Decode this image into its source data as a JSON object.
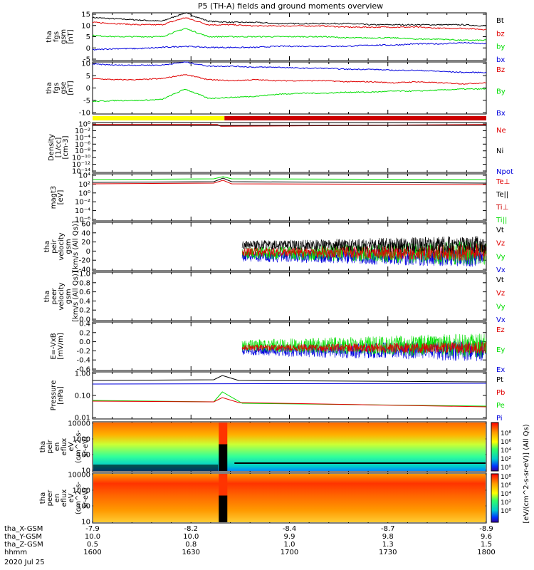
{
  "title": "P5 (TH-A) fields and ground moments overview",
  "colors": {
    "black": "#000000",
    "red": "#e00000",
    "green": "#00dd00",
    "blue": "#0000dd",
    "yellow": "#ffff00",
    "darkred": "#cc0000"
  },
  "panels": [
    {
      "id": "fgs-gsm",
      "ylabel": [
        "tha",
        "fgs",
        "gsm",
        "[nT]"
      ],
      "yticks": [
        "15",
        "10",
        "5",
        "0",
        "-5"
      ],
      "ylim": [
        -5,
        15
      ],
      "legend": [
        {
          "text": "Bt",
          "color": "black"
        },
        {
          "text": "bz",
          "color": "red"
        },
        {
          "text": "by",
          "color": "green"
        },
        {
          "text": "bx",
          "color": "blue"
        }
      ]
    },
    {
      "id": "fgs-gse",
      "ylabel": [
        "tha",
        "fgs",
        "gse",
        "[nT]"
      ],
      "yticks": [
        "10",
        "5",
        "0",
        "-5",
        "-10"
      ],
      "ylim": [
        -15,
        10
      ],
      "legend": [
        {
          "text": "Bz",
          "color": "red"
        },
        {
          "text": "By",
          "color": "green"
        },
        {
          "text": "Bx",
          "color": "blue"
        }
      ]
    },
    {
      "id": "density",
      "ylabel": [
        "Density",
        "[1/cc]",
        "[cm-3]"
      ],
      "yticks": [
        "10⁰",
        "10⁻²",
        "10⁻⁴",
        "10⁻⁶",
        "10⁻⁸",
        "10⁻¹⁰",
        "10⁻¹²",
        "10⁻¹⁴"
      ],
      "legend": [
        {
          "text": "Ne",
          "color": "red"
        },
        {
          "text": "Ni",
          "color": "black"
        },
        {
          "text": "Npot",
          "color": "blue"
        }
      ]
    },
    {
      "id": "temperature",
      "ylabel": [
        "magt3",
        "[eV]"
      ],
      "yticks": [
        "10⁴",
        "10²",
        "10⁰",
        "10⁻²",
        "10⁻⁴",
        "10⁻⁶"
      ],
      "legend": [
        {
          "text": "Te⊥",
          "color": "red"
        },
        {
          "text": "Te||",
          "color": "black"
        },
        {
          "text": "Ti⊥",
          "color": "darkred"
        },
        {
          "text": "Ti||",
          "color": "green"
        }
      ]
    },
    {
      "id": "peir-velocity",
      "ylabel": [
        "tha",
        "peir",
        "velocity",
        "gsm",
        "[km/s (All Qs)]"
      ],
      "yticks": [
        "60",
        "40",
        "20",
        "0",
        "-20",
        "-40"
      ],
      "ylim": [
        -40,
        60
      ],
      "legend": [
        {
          "text": "Vt",
          "color": "black"
        },
        {
          "text": "Vz",
          "color": "red"
        },
        {
          "text": "Vy",
          "color": "green"
        },
        {
          "text": "Vx",
          "color": "blue"
        }
      ]
    },
    {
      "id": "peer-velocity",
      "ylabel": [
        "tha",
        "peer",
        "velocity",
        "gsm",
        "[km/s (All Qs)]"
      ],
      "yticks": [
        "1.0",
        "0.8",
        "0.6",
        "0.4",
        "0.2",
        "0.0"
      ],
      "ylim": [
        0,
        1
      ],
      "legend": [
        {
          "text": "Vt",
          "color": "black"
        },
        {
          "text": "Vz",
          "color": "red"
        },
        {
          "text": "Vy",
          "color": "green"
        },
        {
          "text": "Vx",
          "color": "blue"
        }
      ]
    },
    {
      "id": "efield",
      "ylabel": [
        "E=-VxB",
        "[mV/m]"
      ],
      "yticks": [
        "0.4",
        "0.2",
        "0.0",
        "-0.2",
        "-0.4",
        "-0.6"
      ],
      "ylim": [
        -0.6,
        0.4
      ],
      "legend": [
        {
          "text": "Ez",
          "color": "red"
        },
        {
          "text": "Ey",
          "color": "green"
        },
        {
          "text": "Ex",
          "color": "blue"
        }
      ]
    },
    {
      "id": "pressure",
      "ylabel": [
        "Pressure",
        "[nPa]"
      ],
      "yticks": [
        "1.00",
        "0.10",
        "0.01"
      ],
      "legend": [
        {
          "text": "Pt",
          "color": "black"
        },
        {
          "text": "Pb",
          "color": "red"
        },
        {
          "text": "Pe",
          "color": "green"
        },
        {
          "text": "Pi",
          "color": "blue"
        }
      ]
    },
    {
      "id": "peir-eflux",
      "ylabel": [
        "tha",
        "peir",
        "en",
        "eflux",
        "eV",
        "(cm^2-s-",
        "sr-eV)"
      ],
      "yticks": [
        "10000",
        "1000",
        "100",
        "10"
      ]
    },
    {
      "id": "peer-eflux",
      "ylabel": [
        "tha",
        "peer",
        "en",
        "eflux",
        "eV",
        "(cm^2-s-",
        "sr-eV)"
      ],
      "yticks": [
        "10000",
        "1000",
        "100",
        "10"
      ]
    }
  ],
  "colorbar": {
    "label": "[eV/(cm^2-s-sr-eV)] (All Qs)",
    "ticks": [
      "10⁸",
      "10⁶",
      "10⁴",
      "10²",
      "10⁰"
    ],
    "ticks2": [
      "10⁸",
      "10⁶",
      "10⁴",
      "10²",
      "10⁰"
    ]
  },
  "xaxis": {
    "rows": [
      {
        "label": "tha_X-GSM",
        "values": [
          "-7.9",
          "-8.2",
          "-8.4",
          "-8.7",
          "-8.9"
        ]
      },
      {
        "label": "tha_Y-GSM",
        "values": [
          "10.0",
          "10.0",
          "9.9",
          "9.8",
          "9.6"
        ]
      },
      {
        "label": "tha_Z-GSM",
        "values": [
          "0.5",
          "0.8",
          "1.0",
          "1.3",
          "1.5"
        ]
      },
      {
        "label": "hhmm",
        "values": [
          "1600",
          "1630",
          "1700",
          "1730",
          "1800"
        ]
      }
    ],
    "date": "2020 Jul 25"
  },
  "chart_data": {
    "type": "line",
    "time_range": [
      "1600",
      "1800"
    ],
    "series": [
      {
        "panel": "fgs-gsm",
        "name": "Bt",
        "approx": [
          13,
          12.5,
          12,
          11.5,
          15,
          11.5,
          11,
          11,
          10.5,
          10.5,
          10.5,
          10.5,
          10,
          10,
          10,
          10,
          10,
          9.5
        ]
      },
      {
        "panel": "fgs-gsm",
        "name": "bz",
        "approx": [
          11,
          10.5,
          10,
          10,
          13,
          10,
          10,
          9.5,
          9.5,
          9.5,
          9.5,
          9,
          9,
          9,
          9,
          8.5,
          8.5,
          8
        ]
      },
      {
        "panel": "fgs-gsm",
        "name": "by",
        "approx": [
          5.5,
          5,
          5,
          5,
          8.5,
          5,
          5,
          5,
          5,
          5,
          5,
          4.5,
          4.5,
          4.5,
          4,
          4,
          3.5,
          3.5
        ]
      },
      {
        "panel": "fgs-gsm",
        "name": "bx",
        "approx": [
          -0.5,
          0,
          0,
          0.5,
          1,
          0.5,
          0.5,
          0.5,
          1,
          1,
          1,
          1,
          1.5,
          1.5,
          2,
          2,
          2.5,
          2
        ]
      },
      {
        "panel": "fgs-gse",
        "name": "Bz",
        "approx": [
          2,
          1.5,
          1.5,
          2,
          4,
          1.5,
          1,
          1.5,
          1,
          1,
          1,
          0.5,
          0.5,
          0,
          0.5,
          0,
          -0.5,
          0
        ]
      },
      {
        "panel": "fgs-gse",
        "name": "By",
        "approx": [
          -9,
          -8.5,
          -8.5,
          -8,
          -3,
          -7.5,
          -7,
          -6.5,
          -5.5,
          -5,
          -5,
          -4.5,
          -4.5,
          -4,
          -4,
          -3.5,
          -3,
          -3
        ]
      },
      {
        "panel": "fgs-gse",
        "name": "Bx",
        "approx": [
          9,
          8.5,
          8.5,
          8.5,
          10,
          8,
          8,
          7.5,
          7.5,
          7,
          7,
          6.5,
          6.5,
          6,
          6,
          5.5,
          5,
          5
        ]
      }
    ]
  }
}
